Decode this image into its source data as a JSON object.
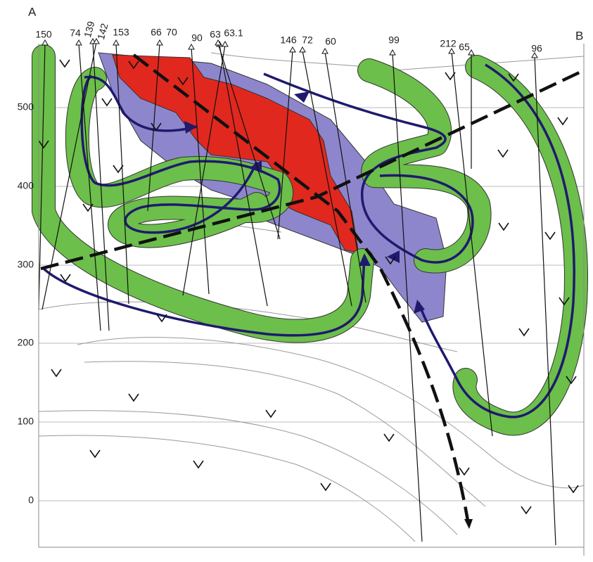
{
  "labels": {
    "left": "A",
    "right": "B"
  },
  "depth_axis": [
    "500",
    "400",
    "300",
    "200",
    "100",
    "0"
  ],
  "boreholes": [
    "150",
    "74",
    "139",
    "142",
    "153",
    "66",
    "70",
    "90",
    "63",
    "63.1",
    "146",
    "72",
    "60",
    "99",
    "212",
    "65",
    "96"
  ]
}
